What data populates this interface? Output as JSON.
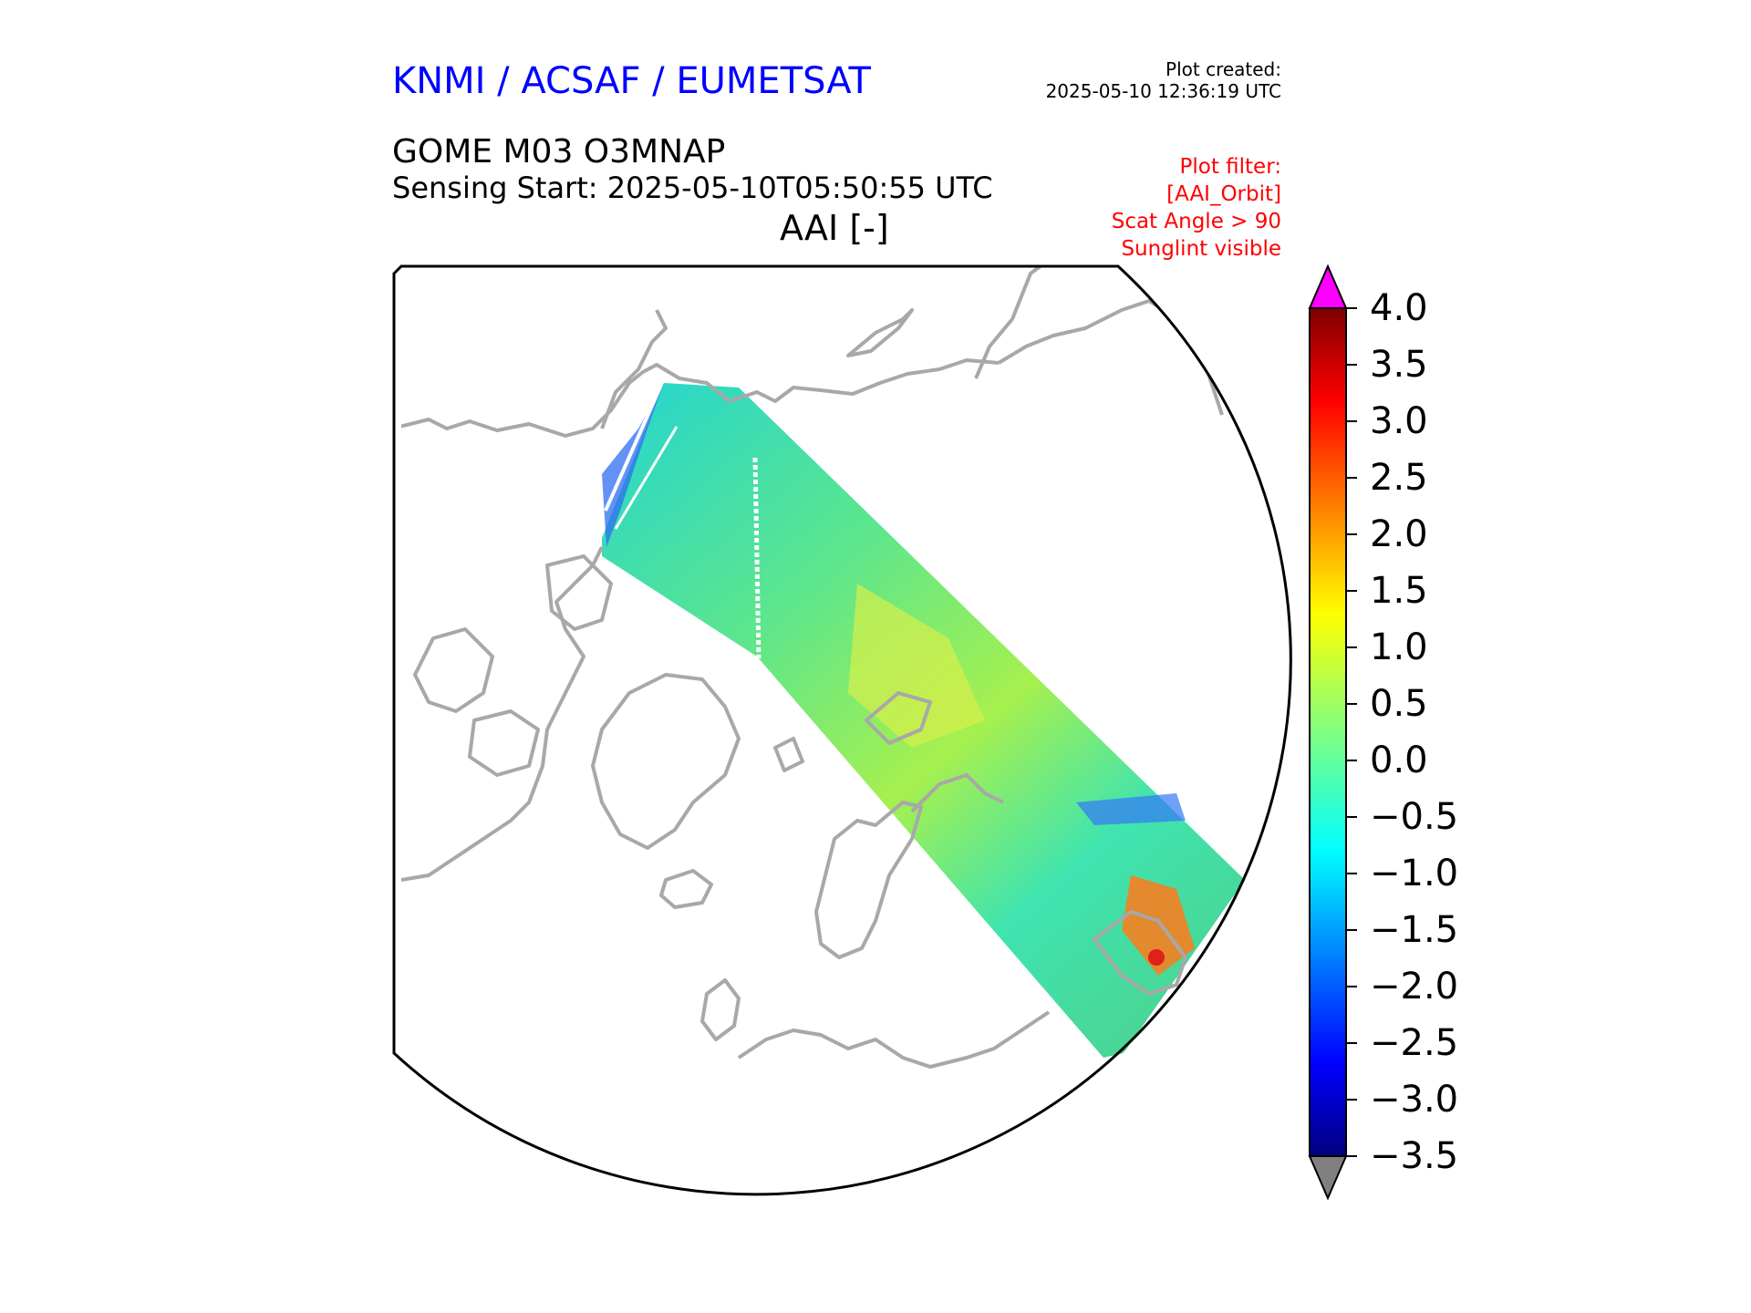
{
  "header": {
    "organization": "KNMI / ACSAF / EUMETSAT",
    "created_label": "Plot created:",
    "created_time": "2025-05-10 12:36:19 UTC",
    "product": "GOME M03 O3MNAP",
    "sensing_start": "Sensing Start: 2025-05-10T05:50:55 UTC",
    "variable": "AAI [-]"
  },
  "filter": {
    "title": "Plot filter:",
    "lines": [
      "[AAI_Orbit]",
      "Scat Angle > 90",
      "Sunglint visible"
    ]
  },
  "colorbar": {
    "ticks": [
      "4.0",
      "3.5",
      "3.0",
      "2.5",
      "2.0",
      "1.5",
      "1.0",
      "0.5",
      "0.0",
      "−0.5",
      "−1.0",
      "−1.5",
      "−2.0",
      "−2.5",
      "−3.0",
      "−3.5"
    ],
    "tick_values": [
      4.0,
      3.5,
      3.0,
      2.5,
      2.0,
      1.5,
      1.0,
      0.5,
      0.0,
      -0.5,
      -1.0,
      -1.5,
      -2.0,
      -2.5,
      -3.0,
      -3.5
    ],
    "min": -3.5,
    "max": 4.0,
    "over_color": "#ff00ff",
    "under_color": "#808080",
    "colormap": "jet"
  },
  "colors": {
    "title_blue": "#0000ff",
    "filter_red": "#ff0000",
    "coastline_gray": "#a8a8a8"
  }
}
